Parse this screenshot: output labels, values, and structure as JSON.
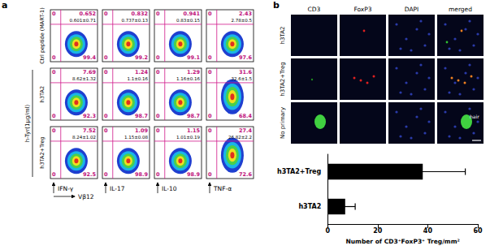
{
  "panel_a": {
    "label": "a",
    "row_labels": [
      "Ctrl peptide (MART-1)",
      "h3TA2",
      "h3TA2+Treg"
    ],
    "group_label": "h-Tyr(1μg/ml)",
    "x_axis": "Vβ12",
    "columns": [
      "IFN-γ",
      "IL-17",
      "IL-10",
      "TNF-α"
    ],
    "cells": [
      [
        {
          "ul": "0",
          "ur": "0.652",
          "mean": "0.601±0.71",
          "ll": "0",
          "lr": "99.4"
        },
        {
          "ul": "0",
          "ur": "0.832",
          "mean": "0.737±0.13",
          "ll": "0",
          "lr": "99.2"
        },
        {
          "ul": "0",
          "ur": "0.941",
          "mean": "0.83±0.15",
          "ll": "0",
          "lr": "99.1"
        },
        {
          "ul": "0",
          "ur": "2.43",
          "mean": "2.78±0.5",
          "ll": "0",
          "lr": "97.6"
        }
      ],
      [
        {
          "ul": "0",
          "ur": "7.69",
          "mean": "8.62±1.32",
          "ll": "0",
          "lr": "92.3"
        },
        {
          "ul": "0",
          "ur": "1.24",
          "mean": "1.1±0.16",
          "ll": "0",
          "lr": "98.7"
        },
        {
          "ul": "0",
          "ur": "1.29",
          "mean": "1.16±0.16",
          "ll": "0",
          "lr": "98.7"
        },
        {
          "ul": "0",
          "ur": "31.6",
          "mean": "32.6±1.5",
          "ll": "0",
          "lr": "68.4"
        }
      ],
      [
        {
          "ul": "0",
          "ur": "7.52",
          "mean": "8.24±1.02",
          "ll": "0",
          "lr": "92.5"
        },
        {
          "ul": "0",
          "ur": "1.09",
          "mean": "1.15±0.08",
          "ll": "0",
          "lr": "98.9"
        },
        {
          "ul": "0",
          "ur": "1.15",
          "mean": "1.01±0.19",
          "ll": "0",
          "lr": "98.9"
        },
        {
          "ul": "0",
          "ur": "27.4",
          "mean": "26.82±2.2",
          "ll": "0",
          "lr": "72.6"
        }
      ]
    ]
  },
  "panel_b": {
    "label": "b",
    "columns": [
      "CD3",
      "FoxP3",
      "DAPI",
      "merged"
    ],
    "rows": [
      "h3TA2",
      "h3TA2+Treg",
      "No primary"
    ],
    "annotation": "hair"
  },
  "chart_data": {
    "type": "bar",
    "orientation": "horizontal",
    "categories": [
      "h3TA2",
      "h3TA2+Treg"
    ],
    "values": [
      7,
      38
    ],
    "errors": [
      4,
      17
    ],
    "color": "#000000",
    "xlabel": "Number of CD3⁺FoxP3⁺ Treg/mm²",
    "xlim": [
      0,
      60
    ],
    "xticks": [
      0,
      20,
      40,
      60
    ],
    "grid": false
  }
}
